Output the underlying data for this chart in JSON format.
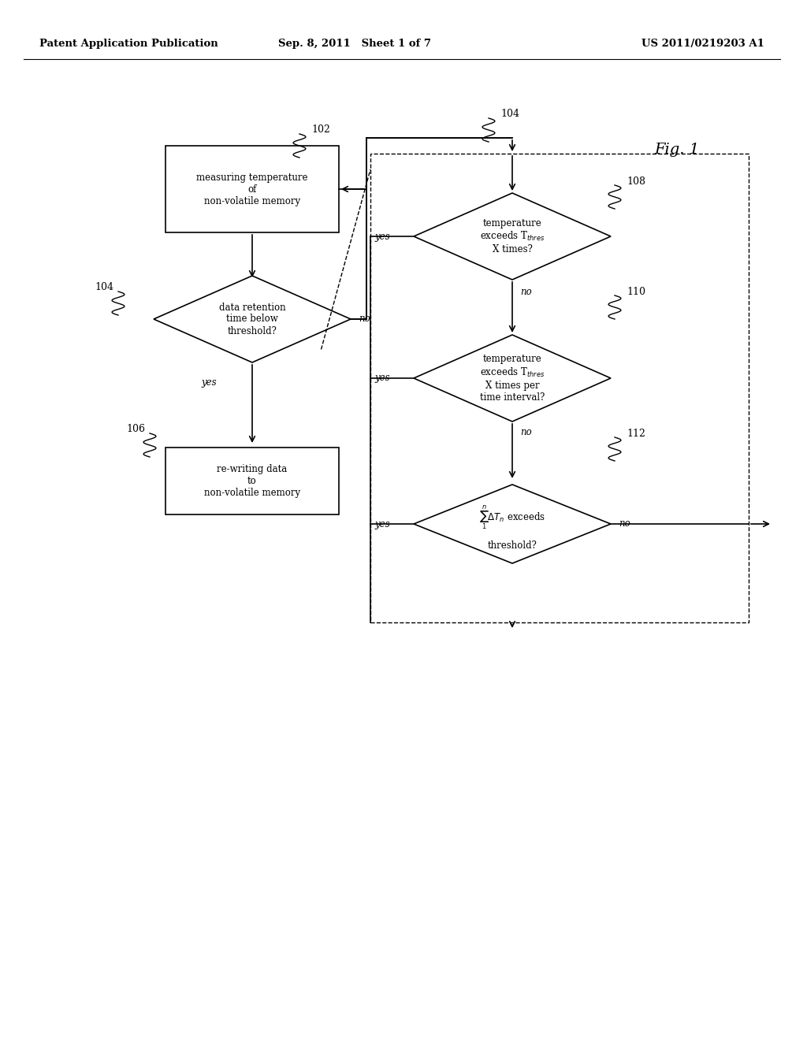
{
  "bg_color": "#ffffff",
  "header_left": "Patent Application Publication",
  "header_mid": "Sep. 8, 2011   Sheet 1 of 7",
  "header_right": "US 2011/0219203 A1",
  "fig_label": "Fig. 1",
  "box102_text": "measuring temperature\nof\nnon-volatile memory",
  "box106_text": "re-writing data\nto\nnon-volatile memory",
  "diamond104_text": "data retention\ntime below\nthreshold?",
  "diamond108_text": "temperature\nexceeds T_thres\nX times?",
  "diamond110_text": "temperature\nexceeds T_thres\nX times per\ntime interval?",
  "diamond112_text": "Σ ΔT_n exceeds\nthreshold?",
  "label102": "102",
  "label104a": "104",
  "label104b": "104",
  "label106": "106",
  "label108": "108",
  "label110": "110",
  "label112": "112"
}
